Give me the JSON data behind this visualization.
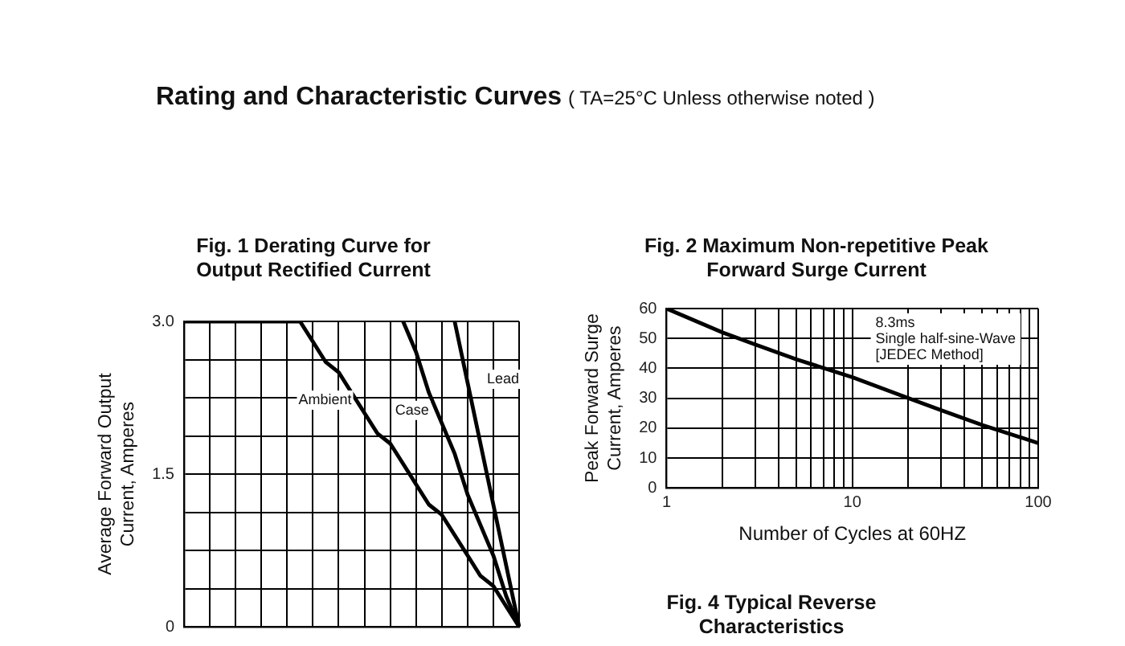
{
  "chart_data": [
    {
      "type": "other",
      "title": "Rating and Characteristic Curves",
      "subtitle": "( TA=25°C Unless otherwise noted )"
    },
    {
      "type": "line",
      "title": "Fig. 1 Derating Curve for Output Rectified Current",
      "ylabel": "Average Forward Output Current, Amperes",
      "categories": [
        null,
        null,
        null,
        null,
        null,
        null,
        null,
        null,
        null,
        null,
        null,
        null,
        null,
        null,
        null,
        null,
        null,
        null,
        null,
        null,
        null,
        null,
        null,
        null,
        null,
        null,
        null
      ],
      "series": [
        {
          "name": "Ambient",
          "color": "#000000",
          "values": [
            3.0,
            3.0,
            3.0,
            3.0,
            3.0,
            3.0,
            3.0,
            3.0,
            3.0,
            3.0,
            2.8,
            2.6,
            2.5,
            2.3,
            2.1,
            1.9,
            1.8,
            1.6,
            1.4,
            1.2,
            1.1,
            0.9,
            0.7,
            0.5,
            0.4,
            0.2,
            0
          ]
        },
        {
          "name": "Case",
          "color": "#000000",
          "values": [
            null,
            null,
            null,
            null,
            null,
            null,
            null,
            null,
            null,
            null,
            null,
            null,
            null,
            null,
            null,
            null,
            null,
            3.0,
            2.7,
            2.3,
            2.0,
            1.7,
            1.3,
            1.0,
            0.7,
            0.3,
            0
          ]
        },
        {
          "name": "Lead",
          "color": "#000000",
          "values": [
            null,
            null,
            null,
            null,
            null,
            null,
            null,
            null,
            null,
            null,
            null,
            null,
            null,
            null,
            null,
            null,
            null,
            null,
            null,
            null,
            null,
            3.0,
            2.4,
            1.8,
            1.2,
            0.6,
            0
          ]
        }
      ],
      "ylim": [
        0,
        3
      ],
      "yticks": [
        0,
        {
          "value": 0.375,
          "label": null
        },
        {
          "value": 0.75,
          "label": null
        },
        {
          "value": 1.125,
          "label": null
        },
        {
          "value": 1.5,
          "label": "1.5"
        },
        {
          "value": 1.875,
          "label": null
        },
        {
          "value": 2.25,
          "label": null
        },
        {
          "value": 2.625,
          "label": null
        },
        {
          "value": 3,
          "label": "3.0"
        }
      ],
      "tick_labels": "y",
      "grid": true,
      "legend": false,
      "marker": "none",
      "line_style": "solid"
    },
    {
      "type": "line",
      "title": "Fig. 2 Maximum Non-repetitive Peak Forward Surge Current",
      "xlabel": "Number of Cycles at 60HZ",
      "ylabel": "Peak Forward Surge Current, Amperes",
      "x": [
        1,
        2,
        3,
        5,
        10,
        20,
        30,
        50,
        100
      ],
      "series": [
        {
          "color": "#000000",
          "values": [
            60,
            52,
            48,
            43,
            37,
            30,
            26,
            21,
            15
          ]
        }
      ],
      "xlim": [
        1,
        100
      ],
      "xticks": [
        1,
        {
          "value": 2,
          "label": null
        },
        {
          "value": 3,
          "label": null
        },
        {
          "value": 4,
          "label": null
        },
        {
          "value": 5,
          "label": null
        },
        {
          "value": 6,
          "label": null
        },
        {
          "value": 7,
          "label": null
        },
        {
          "value": 8,
          "label": null
        },
        {
          "value": 9,
          "label": null
        },
        10,
        {
          "value": 20,
          "label": null
        },
        {
          "value": 30,
          "label": null
        },
        {
          "value": 40,
          "label": null
        },
        {
          "value": 50,
          "label": null
        },
        {
          "value": 60,
          "label": null
        },
        {
          "value": 70,
          "label": null
        },
        {
          "value": 80,
          "label": null
        },
        {
          "value": 90,
          "label": null
        },
        100
      ],
      "ylim": [
        0,
        60
      ],
      "yticks": [
        0,
        10,
        20,
        30,
        40,
        50,
        60
      ],
      "log": "x",
      "grid": true,
      "legend": false,
      "marker": "none",
      "line_style": "solid",
      "annotations": [
        "8.3ms",
        "Single half-sine-Wave",
        "[JEDEC Method]"
      ]
    },
    {
      "type": "other",
      "title": "Fig. 4 Typical Reverse Characteristics"
    }
  ]
}
